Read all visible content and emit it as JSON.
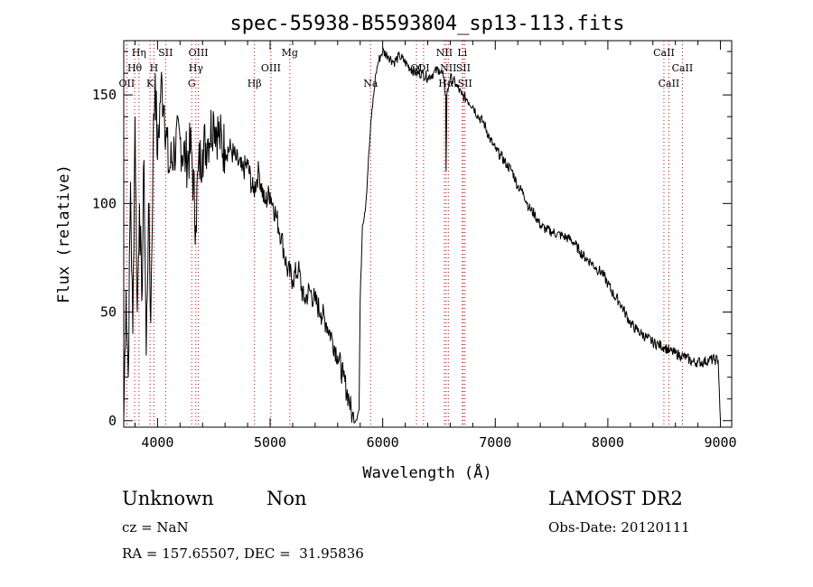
{
  "chart_data": {
    "type": "line",
    "title": "spec-55938-B5593804_sp13-113.fits",
    "xlabel": "Wavelength (Å)",
    "ylabel": "Flux (relative)",
    "xlim": [
      3700,
      9100
    ],
    "ylim": [
      -3,
      175
    ],
    "x_ticks": [
      4000,
      5000,
      6000,
      7000,
      8000,
      9000
    ],
    "y_ticks": [
      0,
      50,
      100,
      150
    ],
    "grid": false,
    "series": [
      {
        "x": [
          3700,
          3720,
          3740,
          3760,
          3780,
          3800,
          3820,
          3840,
          3860,
          3880,
          3900,
          3920,
          3940,
          3960,
          3980,
          4000,
          4030,
          4060,
          4100,
          4150,
          4200,
          4250,
          4300,
          4340,
          4360,
          4400,
          4450,
          4500,
          4550,
          4600,
          4650,
          4700,
          4750,
          4800,
          4850,
          4900,
          4950,
          5000,
          5050,
          5100,
          5150,
          5200,
          5250,
          5300,
          5350,
          5400,
          5450,
          5500,
          5550,
          5600,
          5650,
          5700,
          5730,
          5760,
          5790,
          5800,
          5820,
          5850,
          5880,
          5900,
          5920,
          5940,
          5960,
          5980,
          6000,
          6050,
          6100,
          6150,
          6200,
          6250,
          6300,
          6350,
          6400,
          6450,
          6500,
          6540,
          6560,
          6563,
          6570,
          6600,
          6650,
          6700,
          6750,
          6800,
          6850,
          6900,
          6950,
          7000,
          7050,
          7100,
          7150,
          7200,
          7250,
          7300,
          7350,
          7400,
          7450,
          7500,
          7550,
          7600,
          7650,
          7700,
          7750,
          7800,
          7850,
          7900,
          7950,
          8000,
          8050,
          8100,
          8150,
          8200,
          8250,
          8300,
          8350,
          8400,
          8450,
          8500,
          8550,
          8600,
          8650,
          8700,
          8750,
          8800,
          8850,
          8900,
          8950,
          8980,
          9000
        ],
        "y": [
          0,
          60,
          20,
          110,
          40,
          140,
          50,
          100,
          55,
          120,
          30,
          100,
          45,
          125,
          160,
          120,
          155,
          145,
          115,
          125,
          130,
          120,
          125,
          90,
          115,
          125,
          130,
          140,
          130,
          125,
          125,
          120,
          115,
          118,
          105,
          115,
          100,
          105,
          95,
          85,
          70,
          65,
          70,
          55,
          60,
          55,
          50,
          45,
          38,
          30,
          20,
          10,
          2,
          0,
          5,
          55,
          90,
          100,
          125,
          140,
          150,
          160,
          165,
          168,
          170,
          168,
          165,
          168,
          165,
          162,
          160,
          160,
          158,
          160,
          162,
          158,
          150,
          115,
          150,
          158,
          155,
          150,
          148,
          145,
          140,
          137,
          130,
          125,
          122,
          118,
          115,
          108,
          105,
          98,
          95,
          90,
          88,
          87,
          86,
          85,
          84,
          82,
          78,
          75,
          73,
          70,
          68,
          63,
          58,
          55,
          50,
          45,
          42,
          40,
          38,
          36,
          35,
          34,
          32,
          31,
          30,
          29,
          27,
          27,
          27,
          28,
          28,
          28,
          0
        ]
      }
    ],
    "line_labels": [
      {
        "text": "Hη",
        "x": 3835,
        "row": 1
      },
      {
        "text": "Hθ",
        "x": 3797,
        "row": 2
      },
      {
        "text": "OII",
        "x": 3727,
        "row": 3
      },
      {
        "text": "H",
        "x": 3968,
        "row": 2
      },
      {
        "text": "K",
        "x": 3934,
        "row": 3
      },
      {
        "text": "SII",
        "x": 4072,
        "row": 1
      },
      {
        "text": "OIII",
        "x": 4363,
        "row": 1
      },
      {
        "text": "Hγ",
        "x": 4341,
        "row": 2
      },
      {
        "text": "G",
        "x": 4304,
        "row": 3
      },
      {
        "text": "Mg",
        "x": 5175,
        "row": 1
      },
      {
        "text": "OIII",
        "x": 5007,
        "row": 2
      },
      {
        "text": "Hβ",
        "x": 4861,
        "row": 3
      },
      {
        "text": "Na",
        "x": 5893,
        "row": 3
      },
      {
        "text": "OI",
        "x": 6300,
        "row": 2
      },
      {
        "text": "OI",
        "x": 6363,
        "row": 2
      },
      {
        "text": "NII",
        "x": 6548,
        "row": 1
      },
      {
        "text": "Li",
        "x": 6707,
        "row": 1
      },
      {
        "text": "NII",
        "x": 6583,
        "row": 2
      },
      {
        "text": "SII",
        "x": 6716,
        "row": 2
      },
      {
        "text": "Hα",
        "x": 6563,
        "row": 3
      },
      {
        "text": "SII",
        "x": 6731,
        "row": 3
      },
      {
        "text": "CaII",
        "x": 8498,
        "row": 1
      },
      {
        "text": "CaII",
        "x": 8662,
        "row": 2
      },
      {
        "text": "CaII",
        "x": 8542,
        "row": 3
      }
    ],
    "line_marks": [
      3727,
      3797,
      3835,
      3934,
      3968,
      4072,
      4304,
      4341,
      4363,
      4861,
      5007,
      5175,
      5893,
      6300,
      6363,
      6548,
      6563,
      6583,
      6707,
      6716,
      6731,
      8498,
      8542,
      8662
    ],
    "colors": {
      "line_marks": "#cc0000",
      "spectrum": "#000000"
    }
  },
  "info": {
    "class": "Unknown",
    "subclass": "Non",
    "survey": "LAMOST DR2",
    "cz": "cz = NaN",
    "obs_date": "Obs-Date: 20120111",
    "radec": "RA = 157.65507, DEC =  31.95836"
  }
}
